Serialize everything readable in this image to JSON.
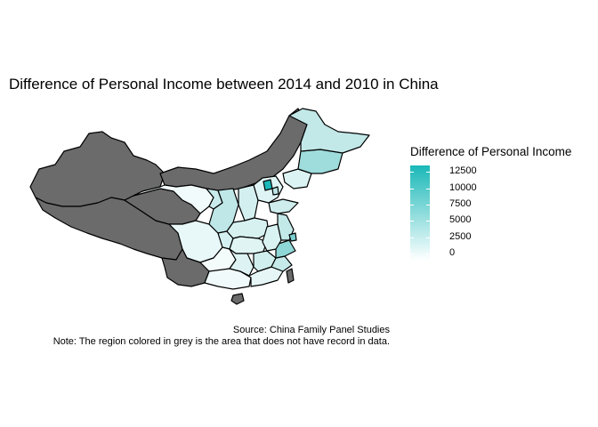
{
  "title": "Difference of Personal Income between 2014 and 2010 in China",
  "legend": {
    "title": "Difference of Personal Income",
    "low_color": "#ffffff",
    "high_color": "#1ab8b8",
    "ticks": [
      "12500",
      "10000",
      "7500",
      "5000",
      "2500",
      "0"
    ],
    "tick_values": [
      12500,
      10000,
      7500,
      5000,
      2500,
      0
    ]
  },
  "no_data_color": "#6b6b6b",
  "caption": {
    "source": "Source: China Family Panel Studies",
    "note": "Note: The region colored in grey is the area that does not have record in data."
  }
}
